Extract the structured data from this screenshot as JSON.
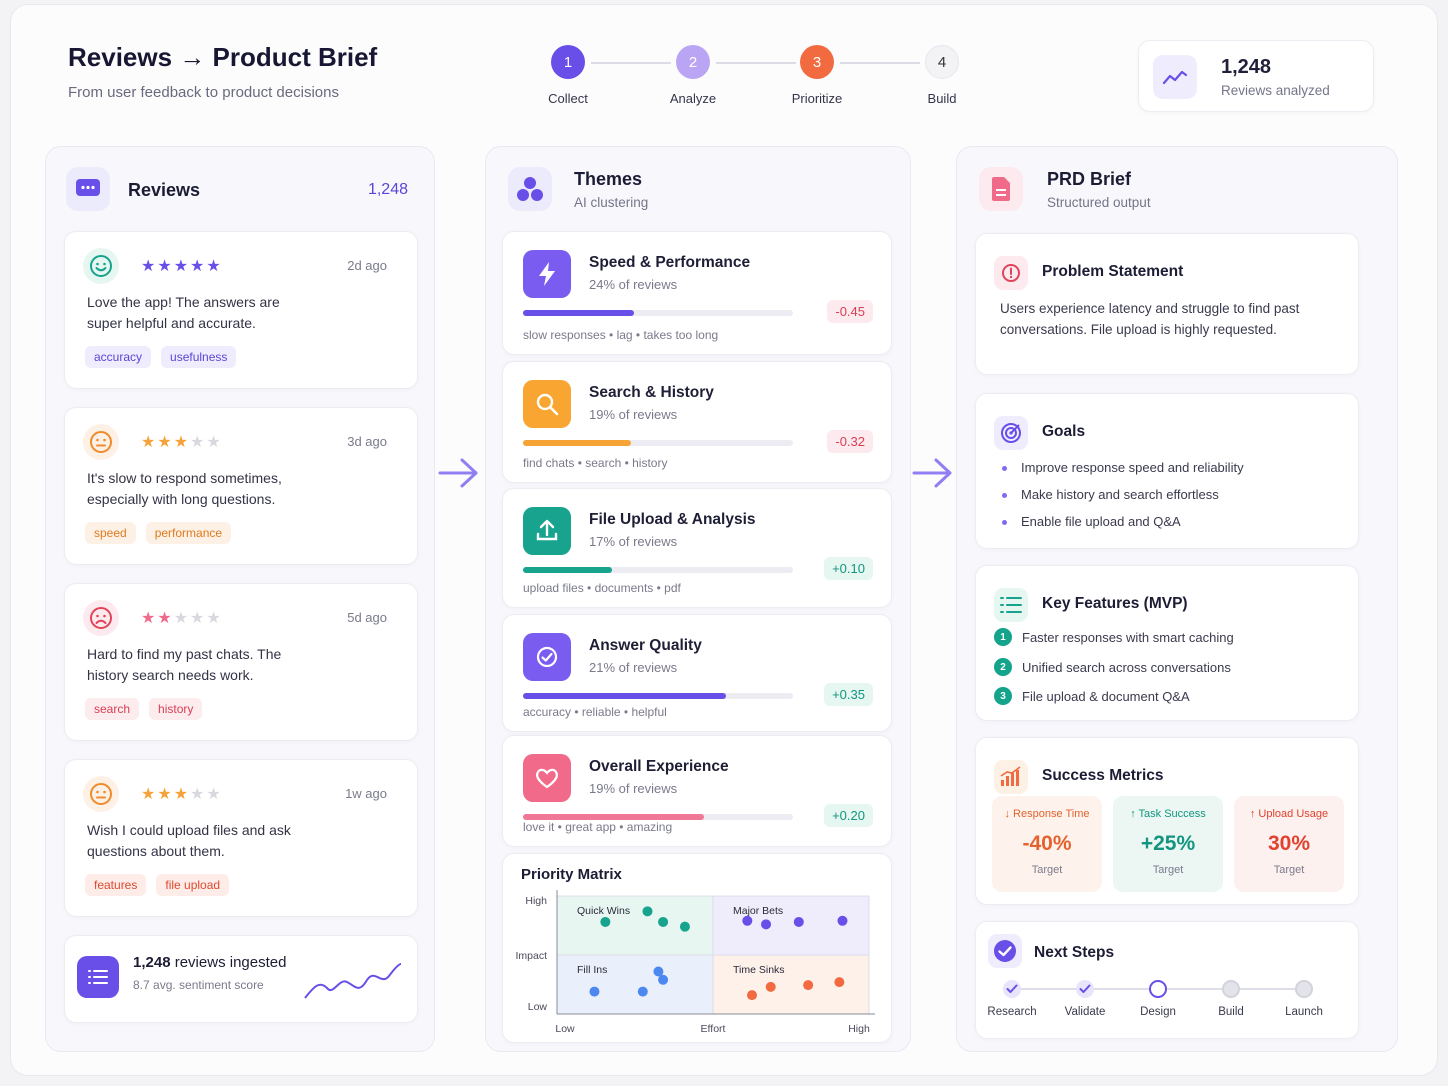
{
  "header": {
    "title": "Reviews → Product Brief",
    "subtitle": "From user feedback to product decisions",
    "steps": [
      {
        "num": "1",
        "label": "Collect",
        "color": "#6a4ee8"
      },
      {
        "num": "2",
        "label": "Analyze",
        "color": "#b9a3f4"
      },
      {
        "num": "3",
        "label": "Prioritize",
        "color": "#f26a3f"
      },
      {
        "num": "4",
        "label": "Build",
        "color": "#f2f2f5"
      }
    ],
    "stat": {
      "value": "1,248",
      "label": "Reviews analyzed",
      "icon": "trend-up-icon"
    }
  },
  "reviews": {
    "title": "Reviews",
    "count": "1,248",
    "items": [
      {
        "rating": 5,
        "stars": "★★★★★",
        "ago": "2d ago",
        "text": "Love the app! The answers are super helpful and accurate.",
        "mood": "happy",
        "tags": [
          "accuracy",
          "usefulness"
        ],
        "tag_style": "purple"
      },
      {
        "rating": 3,
        "stars": "★★★★★",
        "ago": "3d ago",
        "text": "It's slow to respond sometimes, especially with long questions.",
        "mood": "neutral",
        "tags": [
          "speed",
          "performance"
        ],
        "tag_style": "orange"
      },
      {
        "rating": 2,
        "stars": "★★★★★",
        "ago": "5d ago",
        "text": "Hard to find my past chats. The history search needs work.",
        "mood": "sad",
        "tags": [
          "search",
          "history"
        ],
        "tag_style": "red"
      },
      {
        "rating": 3,
        "stars": "★★★★★",
        "ago": "1w ago",
        "text": "Wish I could upload files and ask questions about them.",
        "mood": "neutral",
        "tags": [
          "features",
          "file upload"
        ],
        "tag_style": "red"
      }
    ],
    "footer": {
      "count": "1,248",
      "label": "reviews ingested",
      "sub": "8.7 avg. sentiment score"
    }
  },
  "themes": {
    "title": "Themes",
    "subtitle": "AI clustering",
    "items": [
      {
        "name": "Speed & Performance",
        "pct": "24% of reviews",
        "share": 0.41,
        "score": "-0.45",
        "keywords": "slow responses  •  lag  •  takes too long",
        "icon": "lightning-icon",
        "color": "#7a5cf0",
        "bar": "#6a4ee8",
        "positive": false
      },
      {
        "name": "Search & History",
        "pct": "19% of reviews",
        "share": 0.4,
        "score": "-0.32",
        "keywords": "find chats  •  search  •  history",
        "icon": "magnifier-icon",
        "color": "#f8a531",
        "bar": "#f7a437",
        "positive": false
      },
      {
        "name": "File Upload & Analysis",
        "pct": "17% of reviews",
        "share": 0.33,
        "score": "+0.10",
        "keywords": "upload files  •  documents  •  pdf",
        "icon": "upload-icon",
        "color": "#17a38d",
        "bar": "#17a38d",
        "positive": true
      },
      {
        "name": "Answer Quality",
        "pct": "21% of reviews",
        "share": 0.75,
        "score": "+0.35",
        "keywords": "accuracy  •  reliable  •  helpful",
        "icon": "check-circle-icon",
        "color": "#7a5cf0",
        "bar": "#6a4ee8",
        "positive": true
      },
      {
        "name": "Overall Experience",
        "pct": "19% of reviews",
        "share": 0.67,
        "score": "+0.20",
        "keywords": "love it  •  great app  •  amazing",
        "icon": "heart-icon",
        "color": "#f26a8a",
        "bar": "#f07896",
        "positive": true
      }
    ],
    "matrix": {
      "title": "Priority Matrix",
      "y_label": "Impact",
      "x_label": "Effort",
      "y_high": "High",
      "y_low": "Low",
      "x_low": "Low",
      "x_high": "High",
      "quadrants": {
        "quick_wins": "Quick Wins",
        "major_bets": "Major Bets",
        "fill_ins": "Fill Ins",
        "time_sinks": "Time Sinks"
      },
      "points": [
        {
          "q": "quick_wins",
          "color": "#17a38d",
          "pts": [
            [
              0.31,
              0.44
            ],
            [
              0.58,
              0.26
            ],
            [
              0.68,
              0.44
            ],
            [
              0.82,
              0.52
            ]
          ]
        },
        {
          "q": "major_bets",
          "color": "#6a4ee8",
          "pts": [
            [
              0.22,
              0.42
            ],
            [
              0.34,
              0.48
            ],
            [
              0.55,
              0.44
            ],
            [
              0.83,
              0.42
            ]
          ]
        },
        {
          "q": "fill_ins",
          "color": "#4d88f0",
          "pts": [
            [
              0.24,
              0.62
            ],
            [
              0.55,
              0.62
            ],
            [
              0.68,
              0.42
            ],
            [
              0.65,
              0.28
            ]
          ]
        },
        {
          "q": "time_sinks",
          "color": "#f26a3f",
          "pts": [
            [
              0.25,
              0.68
            ],
            [
              0.37,
              0.54
            ],
            [
              0.61,
              0.51
            ],
            [
              0.81,
              0.46
            ]
          ]
        }
      ]
    }
  },
  "prd": {
    "title": "PRD Brief",
    "subtitle": "Structured output",
    "problem": {
      "title": "Problem Statement",
      "text": "Users experience latency and struggle to find past conversations. File upload is highly requested."
    },
    "goals": {
      "title": "Goals",
      "items": [
        "Improve response speed and reliability",
        "Make history and search effortless",
        "Enable file upload and Q&A"
      ]
    },
    "features": {
      "title": "Key Features (MVP)",
      "items": [
        "Faster responses with smart caching",
        "Unified search across conversations",
        "File upload & document Q&A"
      ]
    },
    "metrics": {
      "title": "Success Metrics",
      "items": [
        {
          "label": "↓ Response Time",
          "value": "-40%",
          "target": "Target",
          "color": "#e5622f",
          "bg": "#fdf3ec"
        },
        {
          "label": "↑ Task Success",
          "value": "+25%",
          "target": "Target",
          "color": "#13957f",
          "bg": "#ecf7f3"
        },
        {
          "label": "↑ Upload Usage",
          "value": "30%",
          "target": "Target",
          "color": "#e2412f",
          "bg": "#fdf1ef"
        }
      ]
    },
    "next": {
      "title": "Next Steps",
      "items": [
        {
          "label": "Research",
          "state": "done"
        },
        {
          "label": "Validate",
          "state": "done"
        },
        {
          "label": "Design",
          "state": "current"
        },
        {
          "label": "Build",
          "state": "todo"
        },
        {
          "label": "Launch",
          "state": "todo"
        }
      ]
    }
  }
}
